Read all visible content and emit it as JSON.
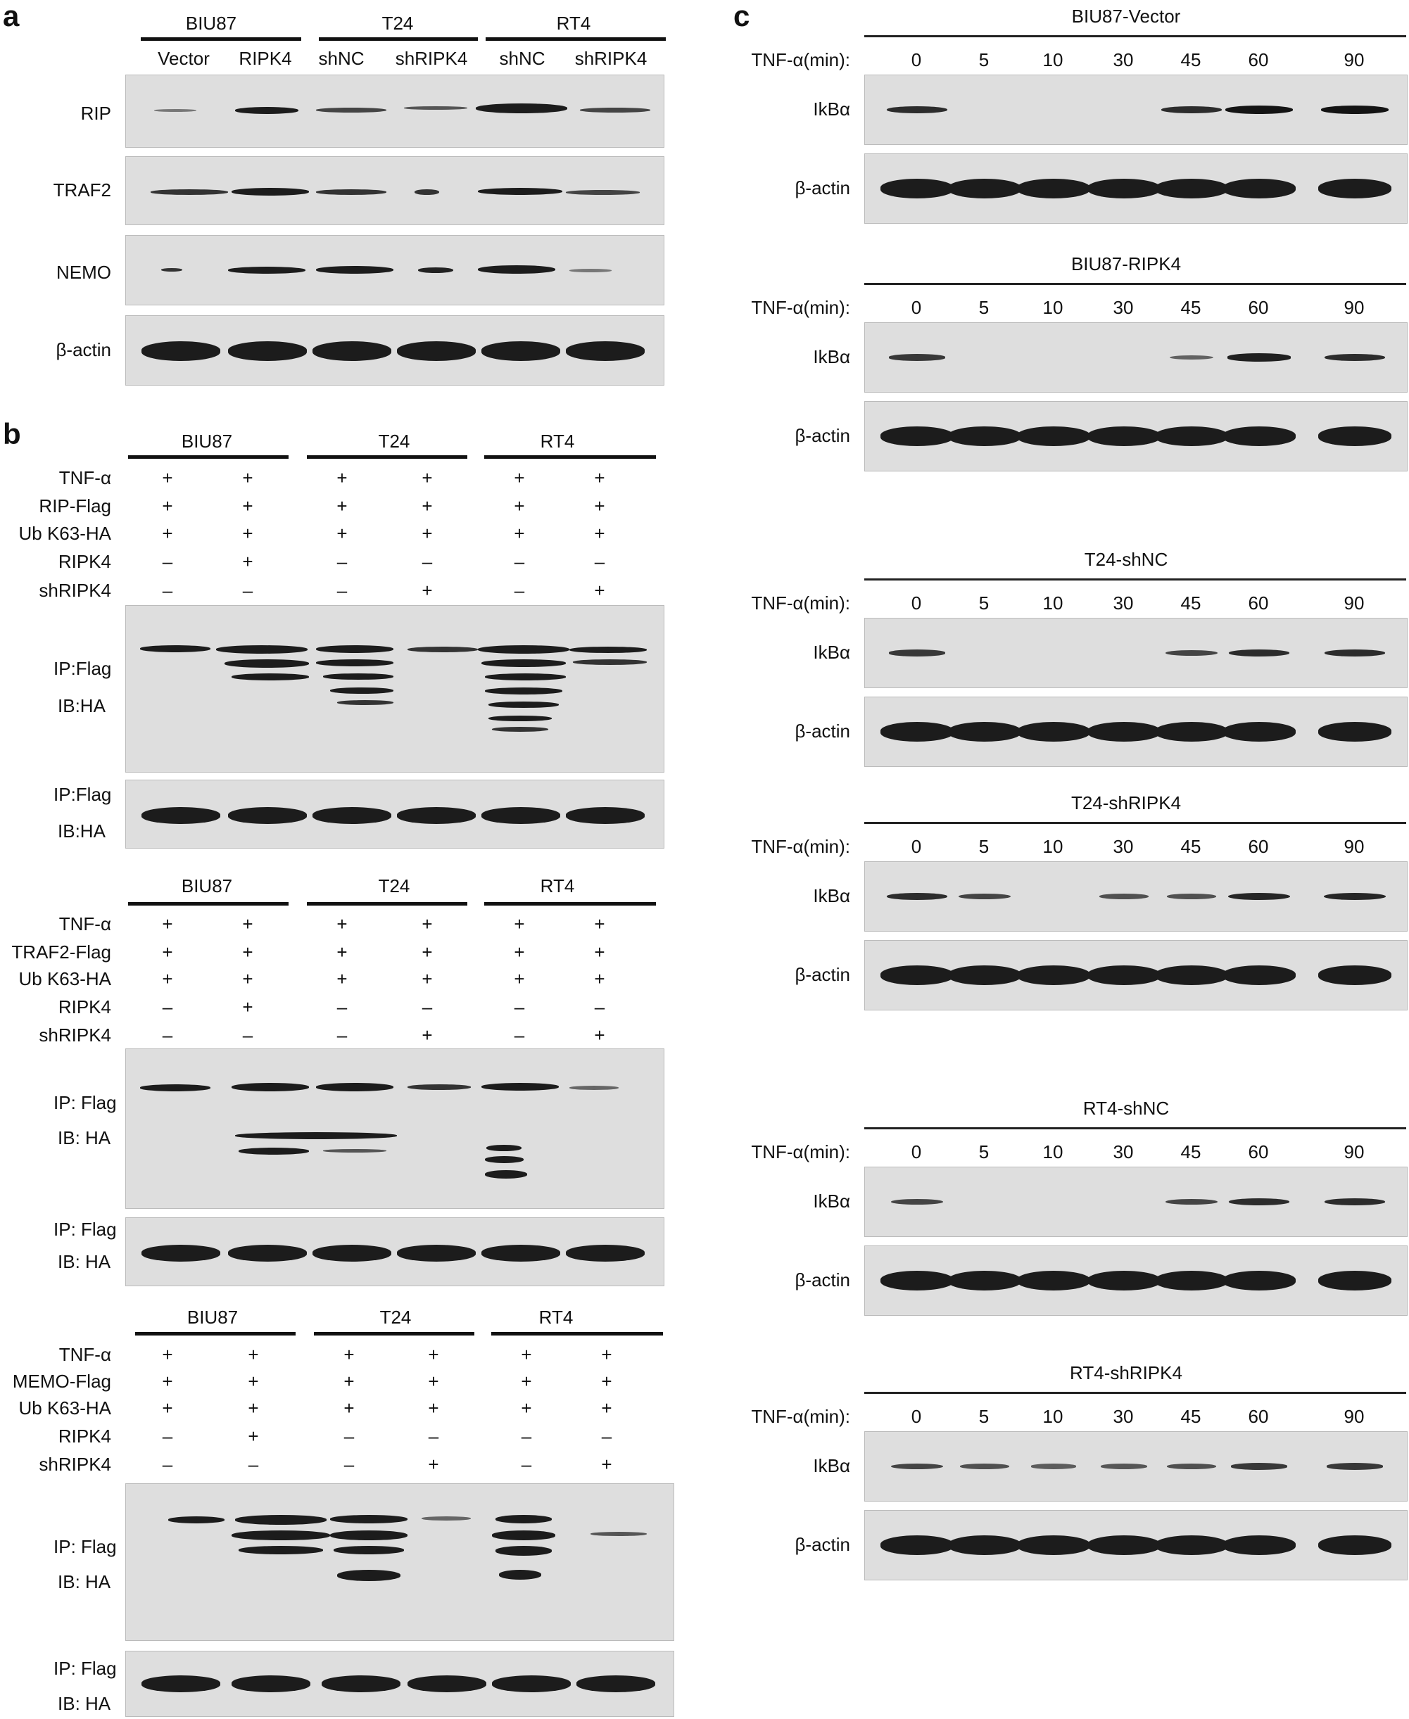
{
  "panel_a": {
    "label": "a",
    "groups": [
      "BIU87",
      "T24",
      "RT4"
    ],
    "lanes": [
      "Vector",
      "RIPK4",
      "shNC",
      "shRIPK4",
      "shNC",
      "shRIPK4"
    ],
    "blots": [
      "RIP",
      "TRAF2",
      "NEMO",
      "β-actin"
    ]
  },
  "panel_b": {
    "label": "b",
    "sub": [
      {
        "groups": [
          "BIU87",
          "T24",
          "RT4"
        ],
        "rows": [
          {
            "name": "TNF-α",
            "marks": [
              "+",
              "+",
              "+",
              "+",
              "+",
              "+"
            ]
          },
          {
            "name": "RIP-Flag",
            "marks": [
              "+",
              "+",
              "+",
              "+",
              "+",
              "+"
            ]
          },
          {
            "name": "Ub K63-HA",
            "marks": [
              "+",
              "+",
              "+",
              "+",
              "+",
              "+"
            ]
          },
          {
            "name": "RIPK4",
            "marks": [
              "–",
              "+",
              "–",
              "–",
              "–",
              "–"
            ]
          },
          {
            "name": "shRIPK4",
            "marks": [
              "–",
              "–",
              "–",
              "+",
              "–",
              "+"
            ]
          }
        ],
        "blot1": [
          "IP:Flag",
          "IB:HA"
        ],
        "blot2": [
          "IP:Flag",
          "IB:HA"
        ]
      },
      {
        "groups": [
          "BIU87",
          "T24",
          "RT4"
        ],
        "rows": [
          {
            "name": "TNF-α",
            "marks": [
              "+",
              "+",
              "+",
              "+",
              "+",
              "+"
            ]
          },
          {
            "name": "TRAF2-Flag",
            "marks": [
              "+",
              "+",
              "+",
              "+",
              "+",
              "+"
            ]
          },
          {
            "name": "Ub K63-HA",
            "marks": [
              "+",
              "+",
              "+",
              "+",
              "+",
              "+"
            ]
          },
          {
            "name": "RIPK4",
            "marks": [
              "–",
              "+",
              "–",
              "–",
              "–",
              "–"
            ]
          },
          {
            "name": "shRIPK4",
            "marks": [
              "–",
              "–",
              "–",
              "+",
              "–",
              "+"
            ]
          }
        ],
        "blot1": [
          "IP: Flag",
          "IB: HA"
        ],
        "blot2": [
          "IP: Flag",
          "IB: HA"
        ]
      },
      {
        "groups": [
          "BIU87",
          "T24",
          "RT4"
        ],
        "rows": [
          {
            "name": "TNF-α",
            "marks": [
              "+",
              "+",
              "+",
              "+",
              "+",
              "+"
            ]
          },
          {
            "name": "MEMO-Flag",
            "marks": [
              "+",
              "+",
              "+",
              "+",
              "+",
              "+"
            ]
          },
          {
            "name": "Ub K63-HA",
            "marks": [
              "+",
              "+",
              "+",
              "+",
              "+",
              "+"
            ]
          },
          {
            "name": "RIPK4",
            "marks": [
              "–",
              "+",
              "–",
              "–",
              "–",
              "–"
            ]
          },
          {
            "name": "shRIPK4",
            "marks": [
              "–",
              "–",
              "–",
              "+",
              "–",
              "+"
            ]
          }
        ],
        "blot1": [
          "IP: Flag",
          "IB: HA"
        ],
        "blot2": [
          "IP: Flag",
          "IB: HA"
        ]
      }
    ]
  },
  "panel_c": {
    "label": "c",
    "time_label": "TNF-α(min):",
    "times": [
      "0",
      "5",
      "10",
      "30",
      "45",
      "60",
      "90"
    ],
    "blot_labels": [
      "IkBα",
      "β-actin"
    ],
    "conditions": [
      {
        "title": "BIU87-Vector",
        "ikb": [
          0.8,
          0,
          0,
          0,
          0.8,
          1.0,
          1.0
        ]
      },
      {
        "title": "BIU87-RIPK4",
        "ikb": [
          0.7,
          0,
          0,
          0,
          0.35,
          0.9,
          0.8
        ]
      },
      {
        "title": "T24-shNC",
        "ikb": [
          0.7,
          0,
          0,
          0,
          0.6,
          0.8,
          0.8
        ]
      },
      {
        "title": "T24-shRIPK4",
        "ikb": [
          0.8,
          0.6,
          0,
          0.5,
          0.5,
          0.85,
          0.85
        ]
      },
      {
        "title": "RT4-shNC",
        "ikb": [
          0.6,
          0,
          0,
          0,
          0.6,
          0.8,
          0.8
        ]
      },
      {
        "title": "RT4-shRIPK4",
        "ikb": [
          0.6,
          0.5,
          0.4,
          0.45,
          0.5,
          0.7,
          0.7
        ]
      }
    ]
  }
}
